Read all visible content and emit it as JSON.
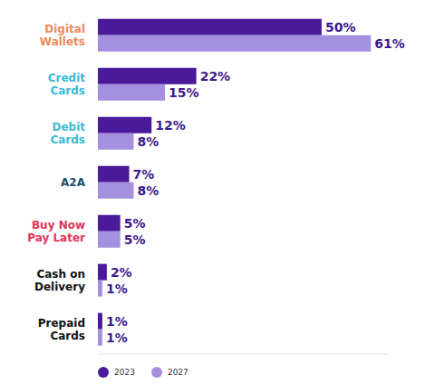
{
  "chart_data": {
    "type": "bar",
    "orientation": "horizontal",
    "categories": [
      "Digital Wallets",
      "Credit Cards",
      "Debit Cards",
      "A2A",
      "Buy Now Pay Later",
      "Cash on Delivery",
      "Prepaid Cards"
    ],
    "series": [
      {
        "name": "2023",
        "color": "#4b1a9b",
        "values": [
          50,
          22,
          12,
          7,
          5,
          2,
          1
        ],
        "value_labels": [
          "50%",
          "22%",
          "12%",
          "7%",
          "5%",
          "2%",
          "1%"
        ]
      },
      {
        "name": "2027",
        "color": "#a590e0",
        "values": [
          61,
          15,
          8,
          8,
          5,
          1,
          1
        ],
        "value_labels": [
          "61%",
          "15%",
          "8%",
          "8%",
          "5%",
          "1%",
          "1%"
        ]
      }
    ],
    "xlim": [
      0,
      65
    ],
    "data_labels": true,
    "tick_labels": "y",
    "legend": "bottom left"
  }
}
